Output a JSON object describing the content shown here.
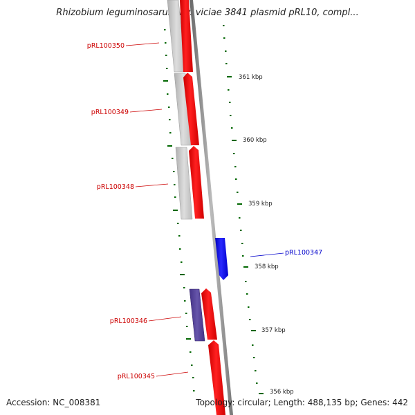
{
  "title": "Rhizobium leguminosarum bv. viciae 3841 plasmid pRL10, compl...",
  "footer": {
    "accession": "Accession: NC_008381",
    "summary": "Topology: circular; Length: 488,135 bp; Genes: 442"
  },
  "colors": {
    "forward_gene": "#ff0000",
    "reverse_gene": "#0000ff",
    "feature_gray": "#c8c8c8",
    "feature_purple": "#554499",
    "backbone": "#888888",
    "tick": "#006600",
    "label_forward": "#cc0000",
    "label_reverse": "#0000cc"
  },
  "ticks": [
    {
      "label": "361 kbp"
    },
    {
      "label": "360 kbp"
    },
    {
      "label": "359 kbp"
    },
    {
      "label": "358 kbp"
    },
    {
      "label": "357 kbp"
    },
    {
      "label": "356 kbp"
    }
  ],
  "genes": [
    {
      "name": "pRL100350",
      "strand": "forward"
    },
    {
      "name": "pRL100349",
      "strand": "forward"
    },
    {
      "name": "pRL100348",
      "strand": "forward"
    },
    {
      "name": "pRL100347",
      "strand": "reverse"
    },
    {
      "name": "pRL100346",
      "strand": "forward"
    },
    {
      "name": "pRL100345",
      "strand": "forward"
    }
  ]
}
